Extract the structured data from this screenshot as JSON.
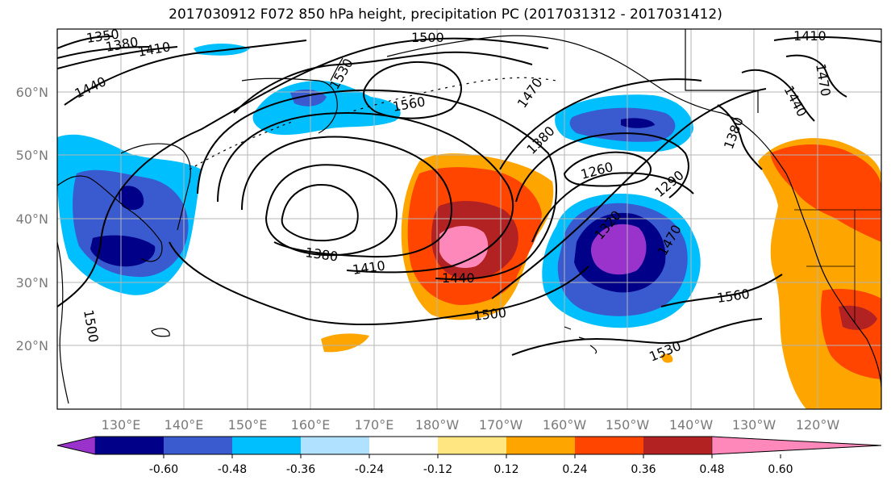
{
  "title": "2017030912 F072 850 hPa height, precipitation PC (2017031312 - 2017031412)",
  "lat_labels": [
    "60°N",
    "50°N",
    "40°N",
    "30°N",
    "20°N"
  ],
  "lon_labels": [
    "130°E",
    "140°E",
    "150°E",
    "160°E",
    "170°E",
    "180°W",
    "170°W",
    "160°W",
    "150°W",
    "140°W",
    "130°W",
    "120°W"
  ],
  "colorbar": {
    "tick_labels": [
      "-0.60",
      "-0.48",
      "-0.36",
      "-0.24",
      "-0.12",
      "0.12",
      "0.24",
      "0.36",
      "0.48",
      "0.60"
    ],
    "colors": [
      "#9933cc",
      "#000088",
      "#3a5ad0",
      "#00bfff",
      "#b0e2ff",
      "#ffffff",
      "#ffe680",
      "#ffa500",
      "#ff4500",
      "#b22222",
      "#ff88bb"
    ]
  },
  "contour_labels": [
    {
      "text": "1350"
    },
    {
      "text": "1380"
    },
    {
      "text": "1410"
    },
    {
      "text": "1440"
    },
    {
      "text": "1500"
    },
    {
      "text": "1530"
    },
    {
      "text": "1560"
    },
    {
      "text": "1470"
    },
    {
      "text": "1380"
    },
    {
      "text": "1260"
    },
    {
      "text": "1290"
    },
    {
      "text": "1380"
    },
    {
      "text": "1410"
    },
    {
      "text": "1440"
    },
    {
      "text": "1500"
    },
    {
      "text": "1320"
    },
    {
      "text": "1470"
    },
    {
      "text": "1560"
    },
    {
      "text": "1530"
    },
    {
      "text": "1500"
    },
    {
      "text": "1410"
    },
    {
      "text": "1470"
    },
    {
      "text": "1440"
    },
    {
      "text": "1380"
    }
  ]
}
